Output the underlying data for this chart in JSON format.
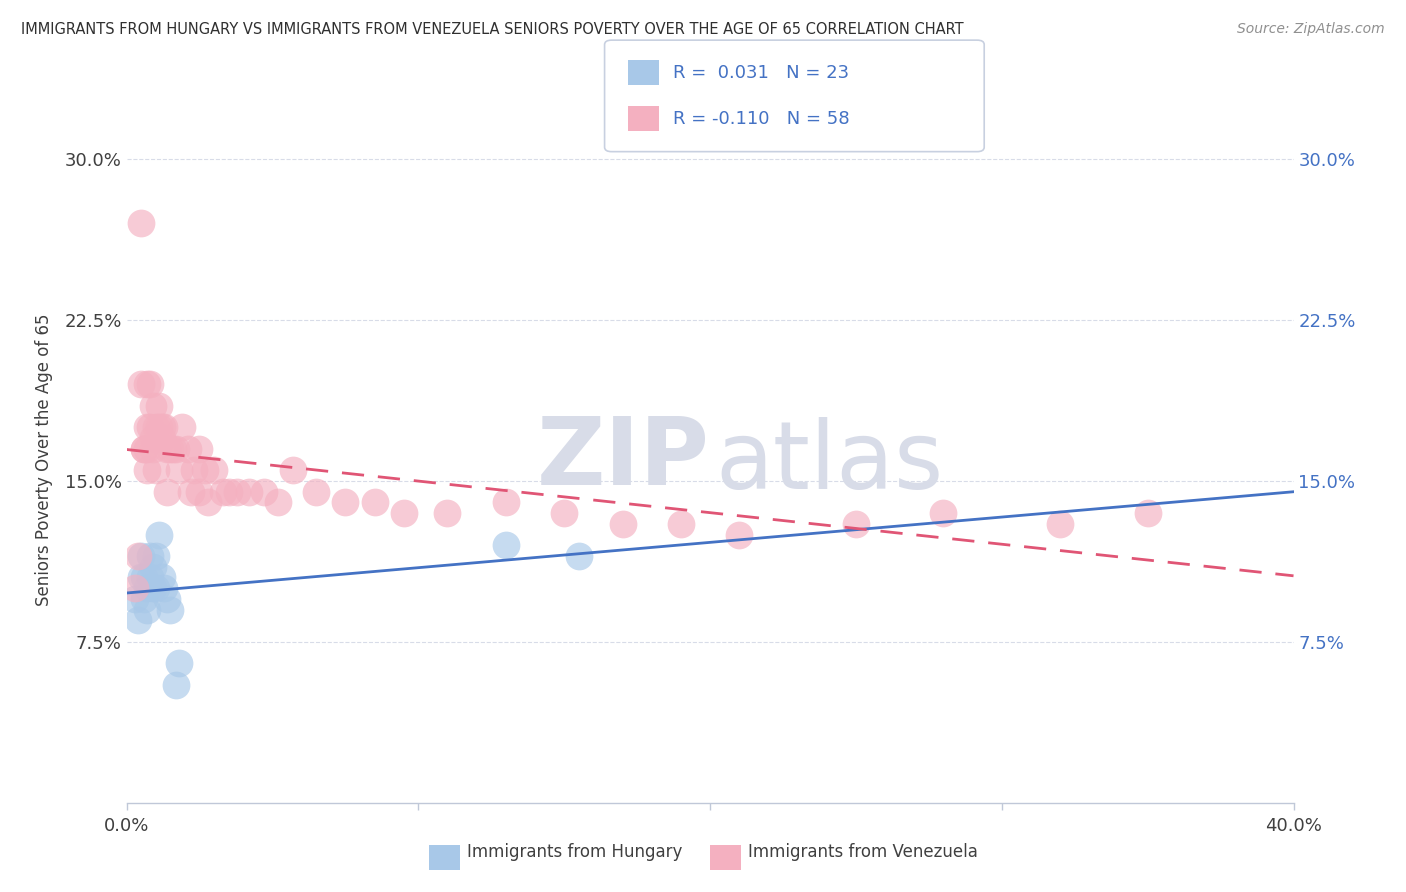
{
  "title": "IMMIGRANTS FROM HUNGARY VS IMMIGRANTS FROM VENEZUELA SENIORS POVERTY OVER THE AGE OF 65 CORRELATION CHART",
  "source": "Source: ZipAtlas.com",
  "ylabel": "Seniors Poverty Over the Age of 65",
  "r_hungary": 0.031,
  "n_hungary": 23,
  "r_venezuela": -0.11,
  "n_venezuela": 58,
  "hungary_color": "#a8c8e8",
  "venezuela_color": "#f4b0c0",
  "hungary_line_color": "#4472c4",
  "venezuela_line_color": "#e05575",
  "hungary_line_style": "solid",
  "venezuela_line_style": "dashed",
  "legend_label_hungary": "Immigrants from Hungary",
  "legend_label_venezuela": "Immigrants from Venezuela",
  "watermark_zip": "ZIP",
  "watermark_atlas": "atlas",
  "xlim": [
    0.0,
    0.4
  ],
  "ylim": [
    0.0,
    0.32
  ],
  "yticks": [
    0.075,
    0.15,
    0.225,
    0.3
  ],
  "ytick_labels": [
    "7.5%",
    "15.0%",
    "22.5%",
    "30.0%"
  ],
  "xtick_positions": [
    0.0,
    0.1,
    0.2,
    0.3,
    0.4
  ],
  "xtick_labels": [
    "0.0%",
    "",
    "",
    "",
    "40.0%"
  ],
  "hungary_x": [
    0.003,
    0.004,
    0.005,
    0.005,
    0.006,
    0.006,
    0.007,
    0.007,
    0.008,
    0.008,
    0.009,
    0.009,
    0.01,
    0.01,
    0.011,
    0.012,
    0.013,
    0.014,
    0.015,
    0.017,
    0.018,
    0.13,
    0.155
  ],
  "hungary_y": [
    0.095,
    0.085,
    0.115,
    0.105,
    0.105,
    0.095,
    0.1,
    0.09,
    0.115,
    0.105,
    0.11,
    0.1,
    0.115,
    0.1,
    0.125,
    0.105,
    0.1,
    0.095,
    0.09,
    0.055,
    0.065,
    0.12,
    0.115
  ],
  "venezuela_x": [
    0.003,
    0.004,
    0.005,
    0.006,
    0.007,
    0.007,
    0.008,
    0.008,
    0.009,
    0.009,
    0.01,
    0.011,
    0.011,
    0.012,
    0.012,
    0.013,
    0.014,
    0.015,
    0.016,
    0.017,
    0.019,
    0.021,
    0.023,
    0.025,
    0.027,
    0.03,
    0.033,
    0.035,
    0.038,
    0.042,
    0.047,
    0.052,
    0.057,
    0.065,
    0.075,
    0.085,
    0.095,
    0.11,
    0.13,
    0.15,
    0.17,
    0.19,
    0.21,
    0.25,
    0.28,
    0.32,
    0.35,
    0.005,
    0.006,
    0.007,
    0.007,
    0.009,
    0.01,
    0.014,
    0.018,
    0.022,
    0.025,
    0.028
  ],
  "venezuela_y": [
    0.1,
    0.115,
    0.27,
    0.165,
    0.175,
    0.195,
    0.175,
    0.195,
    0.17,
    0.185,
    0.175,
    0.175,
    0.185,
    0.17,
    0.175,
    0.175,
    0.165,
    0.165,
    0.165,
    0.165,
    0.175,
    0.165,
    0.155,
    0.165,
    0.155,
    0.155,
    0.145,
    0.145,
    0.145,
    0.145,
    0.145,
    0.14,
    0.155,
    0.145,
    0.14,
    0.14,
    0.135,
    0.135,
    0.14,
    0.135,
    0.13,
    0.13,
    0.125,
    0.13,
    0.135,
    0.13,
    0.135,
    0.195,
    0.165,
    0.155,
    0.165,
    0.165,
    0.155,
    0.145,
    0.155,
    0.145,
    0.145,
    0.14
  ],
  "background_color": "#ffffff",
  "grid_color": "#d8dce8",
  "title_color": "#303030",
  "axis_label_color": "#404040",
  "tick_color_left": "#404040",
  "tick_color_right": "#4472c4",
  "legend_border_color": "#c8d0e0",
  "trend_hungary_x0": 0.0,
  "trend_hungary_x1": 0.4,
  "trend_venezuela_x0": 0.0,
  "trend_venezuela_x1": 0.4
}
